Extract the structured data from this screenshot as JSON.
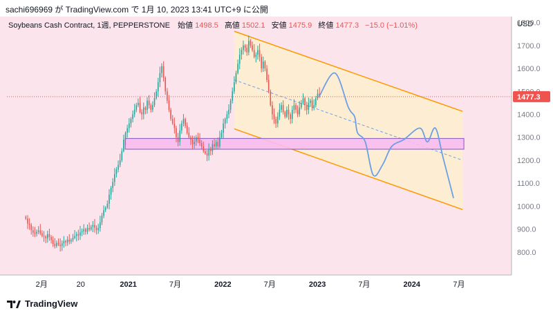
{
  "header": {
    "text": "sachi696969 が TradingView.com で 1月 10, 2023 13:41 UTC+9 に公開"
  },
  "legend": {
    "symbol": "Soybeans Cash Contract, 1週, PEPPERSTONE",
    "open_label": "始値",
    "open_value": "1498.5",
    "high_label": "高値",
    "high_value": "1502.1",
    "low_label": "安値",
    "low_value": "1475.9",
    "close_label": "終値",
    "close_value": "1477.3",
    "change": "−15.0 (−1.01%)"
  },
  "footer": {
    "brand": "TradingView"
  },
  "colors": {
    "background": "#fce4ec",
    "up": "#26a69a",
    "down": "#ef5350",
    "channel": "#ff9800",
    "channel_fill": "#fdeed0",
    "zone_fill": "#f8bbf0",
    "zone_border": "#7e57c2",
    "projection": "#6b9fe4",
    "midline": "#6b9fe4",
    "price_tag": "#ef5350"
  },
  "chart_data": {
    "type": "candlestick",
    "currency_label": "USD",
    "last_price": "1477.3",
    "y_ticks": [
      "1800.0",
      "1700.0",
      "1600.0",
      "1500.0",
      "1400.0",
      "1300.0",
      "1200.0",
      "1100.0",
      "1000.0",
      "900.0",
      "800.0"
    ],
    "y_range": [
      700,
      1820
    ],
    "x_ticks": [
      {
        "label": "2月",
        "date": "2020-02-01",
        "bold": false
      },
      {
        "label": "20",
        "date": "2020-07-01",
        "bold": false
      },
      {
        "label": "2021",
        "date": "2021-01-01",
        "bold": true
      },
      {
        "label": "7月",
        "date": "2021-07-01",
        "bold": false
      },
      {
        "label": "2022",
        "date": "2022-01-01",
        "bold": true
      },
      {
        "label": "7月",
        "date": "2022-07-01",
        "bold": false
      },
      {
        "label": "2023",
        "date": "2023-01-01",
        "bold": true
      },
      {
        "label": "7月",
        "date": "2023-07-01",
        "bold": false
      },
      {
        "label": "2024",
        "date": "2024-01-01",
        "bold": true
      },
      {
        "label": "7月",
        "date": "2024-07-01",
        "bold": false
      }
    ],
    "x_range": [
      "2019-09-20",
      "2025-01-20"
    ],
    "candles_start": "2019-12-02",
    "candles_interval_days": 7,
    "closes": [
      946,
      924,
      918,
      895,
      884,
      880,
      888,
      894,
      882,
      870,
      868,
      860,
      878,
      866,
      852,
      835,
      826,
      840,
      832,
      826,
      838,
      848,
      842,
      854,
      846,
      852,
      862,
      870,
      878,
      872,
      886,
      890,
      900,
      888,
      905,
      898,
      910,
      918,
      906,
      896,
      904,
      930,
      958,
      982,
      994,
      1010,
      1050,
      1080,
      1105,
      1140,
      1160,
      1180,
      1200,
      1240,
      1290,
      1320,
      1340,
      1360,
      1380,
      1400,
      1420,
      1440,
      1450,
      1410,
      1400,
      1430,
      1420,
      1460,
      1440,
      1420,
      1440,
      1470,
      1500,
      1540,
      1580,
      1610,
      1560,
      1500,
      1460,
      1420,
      1380,
      1360,
      1340,
      1300,
      1280,
      1330,
      1360,
      1380,
      1350,
      1320,
      1300,
      1290,
      1270,
      1280,
      1300,
      1290,
      1275,
      1260,
      1240,
      1230,
      1220,
      1250,
      1240,
      1270,
      1260,
      1280,
      1260,
      1300,
      1320,
      1360,
      1380,
      1400,
      1420,
      1460,
      1500,
      1540,
      1580,
      1620,
      1660,
      1680,
      1700,
      1690,
      1670,
      1720,
      1700,
      1680,
      1650,
      1660,
      1680,
      1650,
      1600,
      1630,
      1600,
      1550,
      1500,
      1440,
      1400,
      1380,
      1360,
      1390,
      1420,
      1440,
      1410,
      1390,
      1420,
      1400,
      1380,
      1420,
      1440,
      1420,
      1400,
      1430,
      1450,
      1470,
      1440,
      1420,
      1450,
      1460,
      1430,
      1440,
      1470,
      1490,
      1477
    ],
    "channel": {
      "upper": [
        {
          "date": "2022-02-14",
          "y": 1762
        },
        {
          "date": "2024-07-15",
          "y": 1413
        }
      ],
      "lower": [
        {
          "date": "2022-02-14",
          "y": 1337
        },
        {
          "date": "2024-07-15",
          "y": 985
        }
      ],
      "mid": [
        {
          "date": "2022-02-14",
          "y": 1550
        },
        {
          "date": "2024-07-15",
          "y": 1200
        }
      ]
    },
    "zone": {
      "start": "2020-12-20",
      "end": "2024-07-20",
      "top": 1295,
      "bottom": 1248
    },
    "projection": [
      {
        "date": "2023-01-09",
        "y": 1480
      },
      {
        "date": "2023-03-10",
        "y": 1580
      },
      {
        "date": "2023-05-01",
        "y": 1430
      },
      {
        "date": "2023-05-25",
        "y": 1390
      },
      {
        "date": "2023-06-05",
        "y": 1320
      },
      {
        "date": "2023-07-05",
        "y": 1280
      },
      {
        "date": "2023-08-05",
        "y": 1135
      },
      {
        "date": "2023-09-10",
        "y": 1180
      },
      {
        "date": "2023-10-15",
        "y": 1260
      },
      {
        "date": "2023-12-01",
        "y": 1290
      },
      {
        "date": "2024-02-01",
        "y": 1340
      },
      {
        "date": "2024-03-01",
        "y": 1280
      },
      {
        "date": "2024-04-01",
        "y": 1340
      },
      {
        "date": "2024-05-01",
        "y": 1210
      },
      {
        "date": "2024-06-10",
        "y": 1035
      }
    ]
  }
}
